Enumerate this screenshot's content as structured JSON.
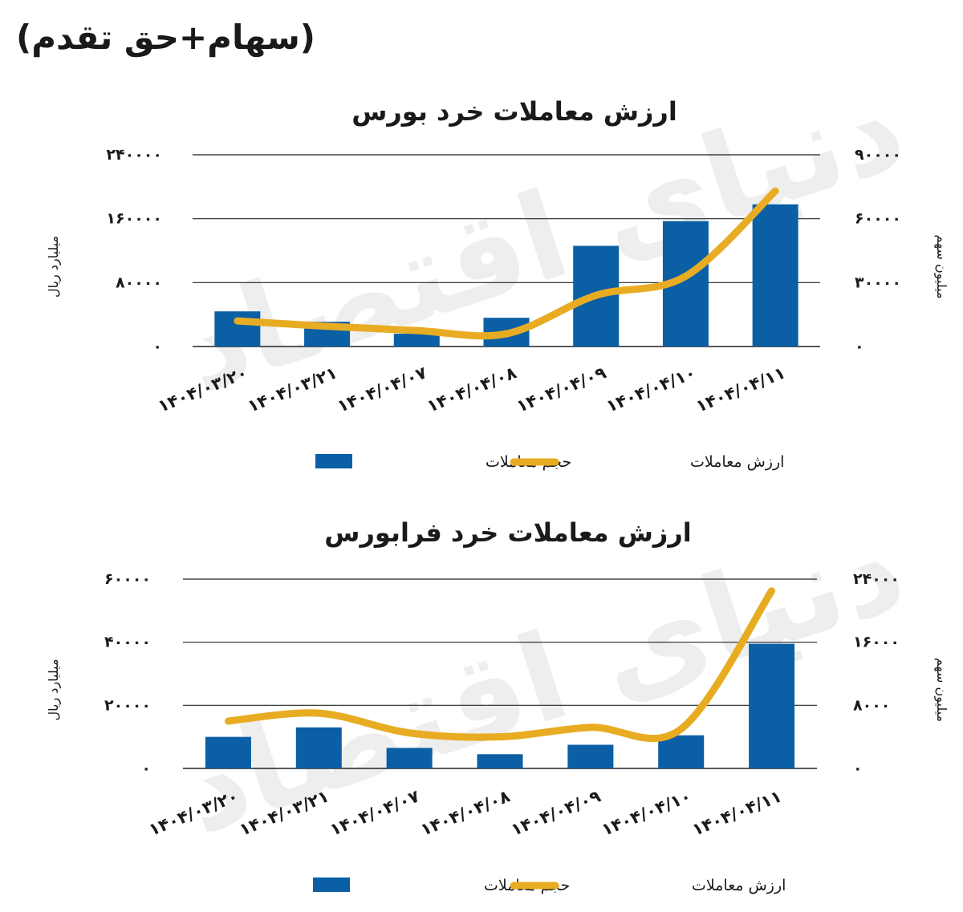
{
  "page": {
    "title": "(سهام+حق تقدم)"
  },
  "watermark": "دنیای اقتصاد",
  "colors": {
    "bar": "#0b5fa5",
    "line": "#e8ac23",
    "grid": "#222222",
    "text": "#1a1a1a"
  },
  "chart_data": [
    {
      "type": "bar",
      "title": "ارزش معاملات خرد بورس",
      "categories": [
        "1404/03/20",
        "1404/03/21",
        "1404/04/07",
        "1404/04/08",
        "1404/04/09",
        "1404/04/10",
        "1404/04/11"
      ],
      "category_labels": [
        "۱۴۰۴/۰۳/۲۰",
        "۱۴۰۴/۰۳/۲۱",
        "۱۴۰۴/۰۴/۰۷",
        "۱۴۰۴/۰۴/۰۸",
        "۱۴۰۴/۰۴/۰۹",
        "۱۴۰۴/۰۴/۱۰",
        "۱۴۰۴/۰۴/۱۱"
      ],
      "ylabel_left": "میلیارد ریال",
      "ylabel_right": "میلیون سهم",
      "ylim_left": [
        0,
        240000
      ],
      "ylim_right": [
        0,
        90000
      ],
      "yticks_left": [
        0,
        80000,
        160000,
        240000
      ],
      "yticks_right": [
        0,
        30000,
        60000,
        90000
      ],
      "ytick_labels_left": [
        "۰",
        "۸۰۰۰۰",
        "۱۶۰۰۰۰",
        "۲۴۰۰۰۰"
      ],
      "ytick_labels_right": [
        "۰",
        "۳۰۰۰۰",
        "۶۰۰۰۰",
        "۹۰۰۰۰"
      ],
      "grid": true,
      "legend_position": "bottom",
      "series": [
        {
          "name": "حجم معاملات",
          "type": "bar",
          "axis": "left",
          "values": [
            44000,
            31000,
            16000,
            36000,
            126000,
            157000,
            178000
          ]
        },
        {
          "name": "ارزش معاملات",
          "type": "line",
          "axis": "right",
          "values": [
            12000,
            9500,
            7500,
            6000,
            24000,
            33000,
            73000
          ]
        }
      ]
    },
    {
      "type": "bar",
      "title": "ارزش معاملات خرد فرابورس",
      "categories": [
        "1404/03/20",
        "1404/03/21",
        "1404/04/07",
        "1404/04/08",
        "1404/04/09",
        "1404/04/10",
        "1404/04/11"
      ],
      "category_labels": [
        "۱۴۰۴/۰۳/۲۰",
        "۱۴۰۴/۰۳/۲۱",
        "۱۴۰۴/۰۴/۰۷",
        "۱۴۰۴/۰۴/۰۸",
        "۱۴۰۴/۰۴/۰۹",
        "۱۴۰۴/۰۴/۱۰",
        "۱۴۰۴/۰۴/۱۱"
      ],
      "ylabel_left": "میلیارد ریال",
      "ylabel_right": "میلیون سهم",
      "ylim_left": [
        0,
        60000
      ],
      "ylim_right": [
        0,
        24000
      ],
      "yticks_left": [
        0,
        20000,
        40000,
        60000
      ],
      "yticks_right": [
        0,
        8000,
        16000,
        24000
      ],
      "ytick_labels_left": [
        "۰",
        "۲۰۰۰۰",
        "۴۰۰۰۰",
        "۶۰۰۰۰"
      ],
      "ytick_labels_right": [
        "۰",
        "۸۰۰۰",
        "۱۶۰۰۰",
        "۲۴۰۰۰"
      ],
      "grid": true,
      "legend_position": "bottom",
      "series": [
        {
          "name": "حجم معاملات",
          "type": "bar",
          "axis": "left",
          "values": [
            10000,
            13000,
            6500,
            4500,
            7500,
            10500,
            39500
          ]
        },
        {
          "name": "ارزش معاملات",
          "type": "line",
          "axis": "right",
          "values": [
            6000,
            7000,
            4500,
            4000,
            5200,
            5000,
            22500
          ]
        }
      ]
    }
  ]
}
